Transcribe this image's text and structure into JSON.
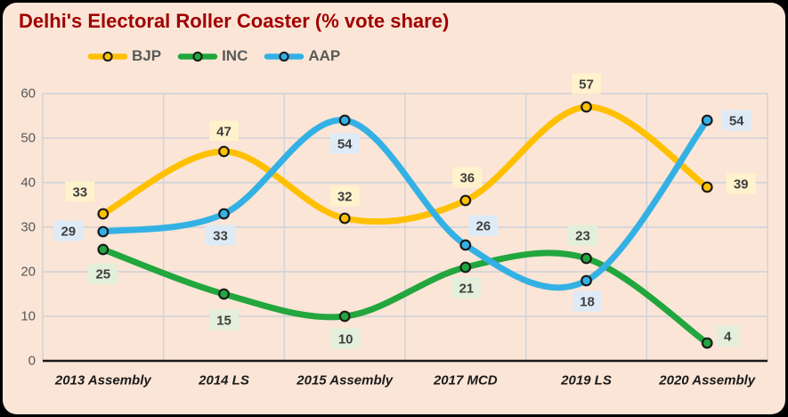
{
  "chart_data": {
    "type": "line",
    "title": "Delhi's Electoral Roller Coaster (% vote share)",
    "categories": [
      "2013 Assembly",
      "2014 LS",
      "2015 Assembly",
      "2017 MCD",
      "2019 LS",
      "2020 Assembly"
    ],
    "series": [
      {
        "name": "BJP",
        "color": "#FFC000",
        "label_bg": "#FFF2CC",
        "values": [
          33,
          47,
          32,
          36,
          57,
          39
        ],
        "label_offsets": [
          [
            -26,
            -25
          ],
          [
            0,
            -23
          ],
          [
            0,
            -25
          ],
          [
            2,
            -26
          ],
          [
            0,
            -26
          ],
          [
            38,
            -4
          ]
        ]
      },
      {
        "name": "INC",
        "color": "#22A63E",
        "label_bg": "#E2EFDA",
        "values": [
          25,
          15,
          10,
          21,
          23,
          4
        ],
        "label_offsets": [
          [
            0,
            27
          ],
          [
            0,
            29
          ],
          [
            1,
            25
          ],
          [
            1,
            23
          ],
          [
            -4,
            -26
          ],
          [
            23,
            -8
          ]
        ]
      },
      {
        "name": "AAP",
        "color": "#33B1E5",
        "label_bg": "#DEEBF7",
        "values": [
          29,
          33,
          54,
          26,
          18,
          54
        ],
        "label_offsets": [
          [
            -39,
            -1
          ],
          [
            -4,
            24
          ],
          [
            0,
            26
          ],
          [
            20,
            -22
          ],
          [
            1,
            23
          ],
          [
            33,
            0
          ]
        ]
      }
    ],
    "ylim": [
      0,
      60
    ],
    "yticks": [
      0,
      10,
      20,
      30,
      40,
      50,
      60
    ],
    "xlabel": "",
    "ylabel": "",
    "grid": true,
    "smooth": true,
    "legend_position": "top-left",
    "colors": {
      "background": "#FBE5D6",
      "frame": "#000000",
      "gridline": "#CDD2DA",
      "axis": "#1A1A1A",
      "title": "#A00000",
      "tick_label": "#595959",
      "category_label": "#1A1A1A",
      "data_label_text": "#3F3F3F",
      "legend_text": "#595959"
    }
  }
}
